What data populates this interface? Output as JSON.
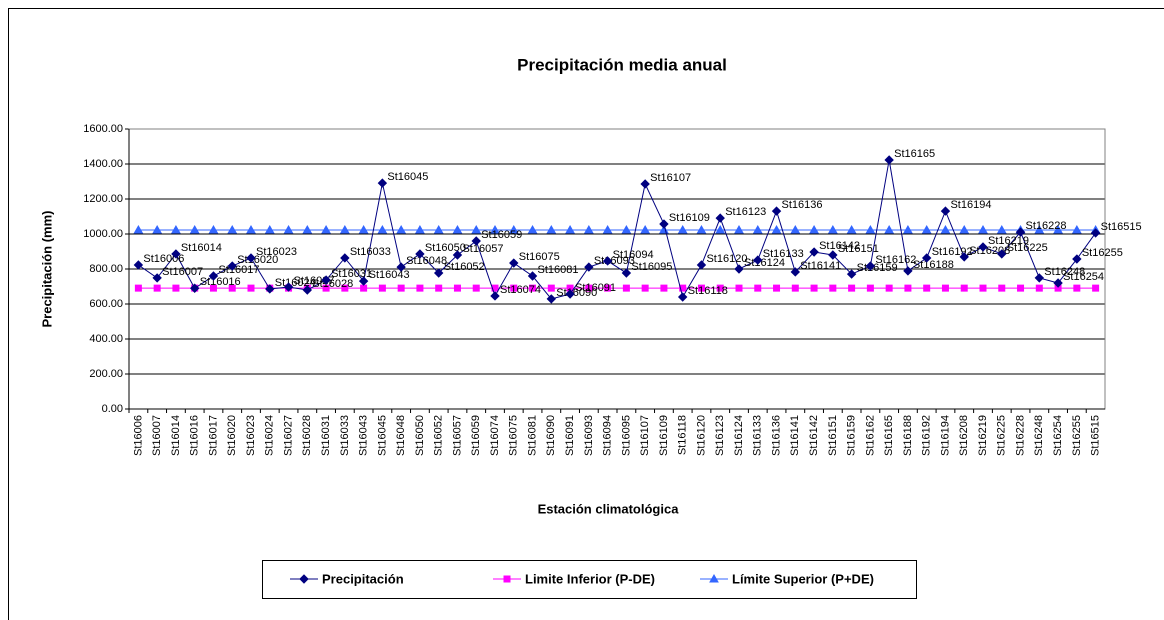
{
  "chart_data": {
    "type": "line",
    "title": "Precipitación media anual",
    "x_label": "Estación climatológica",
    "y_label": "Precipitación (mm)",
    "categories": [
      "St16006",
      "St16007",
      "St16014",
      "St16016",
      "St16017",
      "St16020",
      "St16023",
      "St16024",
      "St16027",
      "St16028",
      "St16031",
      "St16033",
      "St16043",
      "St16045",
      "St16048",
      "St16050",
      "St16052",
      "St16057",
      "St16059",
      "St16074",
      "St16075",
      "St16081",
      "St16090",
      "St16091",
      "St16093",
      "St16094",
      "St16095",
      "St16107",
      "St16109",
      "St16118",
      "St16120",
      "St16123",
      "St16124",
      "St16133",
      "St16136",
      "St16141",
      "St16142",
      "St16151",
      "St16159",
      "St16162",
      "St16165",
      "St16188",
      "St16192",
      "St16194",
      "St16208",
      "St16219",
      "St16225",
      "St16228",
      "St16248",
      "St16254",
      "St16255",
      "St16515"
    ],
    "series": [
      {
        "name": "Precipitación",
        "color": "#000080",
        "marker": "diamond",
        "data_labels": true,
        "values": [
          823,
          749,
          886,
          690,
          760,
          817,
          863,
          686,
          697,
          680,
          737,
          863,
          731,
          1291,
          811,
          886,
          777,
          880,
          960,
          646,
          834,
          760,
          629,
          657,
          811,
          846,
          777,
          1286,
          1057,
          640,
          823,
          1091,
          800,
          851,
          1131,
          783,
          897,
          880,
          771,
          817,
          1423,
          789,
          863,
          1131,
          869,
          926,
          886,
          1011,
          749,
          720,
          857,
          1006
        ]
      },
      {
        "name": "Limite Inferior (P-DE)",
        "color": "#ff00ff",
        "marker": "square",
        "values": [
          691,
          691,
          691,
          691,
          691,
          691,
          691,
          691,
          691,
          691,
          691,
          691,
          691,
          691,
          691,
          691,
          691,
          691,
          691,
          691,
          691,
          691,
          691,
          691,
          691,
          691,
          691,
          691,
          691,
          691,
          691,
          691,
          691,
          691,
          691,
          691,
          691,
          691,
          691,
          691,
          691,
          691,
          691,
          691,
          691,
          691,
          691,
          691,
          691,
          691,
          691,
          691
        ]
      },
      {
        "name": "Límite Superior (P+DE)",
        "color": "#3366ff",
        "marker": "triangle",
        "values": [
          1023,
          1023,
          1023,
          1023,
          1023,
          1023,
          1023,
          1023,
          1023,
          1023,
          1023,
          1023,
          1023,
          1023,
          1023,
          1023,
          1023,
          1023,
          1023,
          1023,
          1023,
          1023,
          1023,
          1023,
          1023,
          1023,
          1023,
          1023,
          1023,
          1023,
          1023,
          1023,
          1023,
          1023,
          1023,
          1023,
          1023,
          1023,
          1023,
          1023,
          1023,
          1023,
          1023,
          1023,
          1023,
          1023,
          1023,
          1023,
          1023,
          1023,
          1023,
          1023
        ]
      }
    ],
    "ylim": [
      0,
      1600
    ],
    "yticks": [
      {
        "value": 0,
        "label": "0.00"
      },
      {
        "value": 200,
        "label": "200.00"
      },
      {
        "value": 400,
        "label": "400.00"
      },
      {
        "value": 600,
        "label": "600.00"
      },
      {
        "value": 800,
        "label": "800.00"
      },
      {
        "value": 1000,
        "label": "1000.00"
      },
      {
        "value": 1200,
        "label": "1200.00"
      },
      {
        "value": 1400,
        "label": "1400.00"
      },
      {
        "value": 1600,
        "label": "1600.00"
      }
    ],
    "grid": true,
    "legend": "bottom"
  }
}
